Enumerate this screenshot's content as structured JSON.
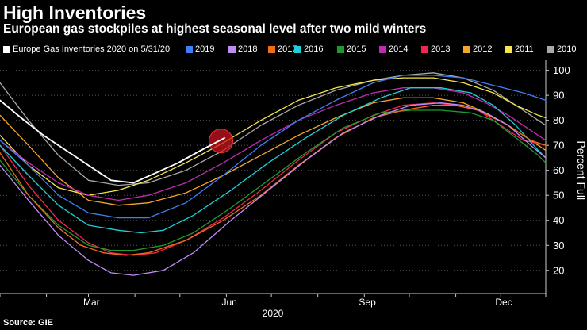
{
  "header": {
    "title": "High Inventories",
    "subtitle": "European gas stockpiles at highest seasonal level after two mild winters"
  },
  "source": "Source: GIE",
  "chart_data": {
    "type": "line",
    "title": "High Inventories",
    "subtitle": "European gas stockpiles at highest seasonal level after two mild winters",
    "xlabel": "2020",
    "ylabel": "Percent Full",
    "ylim": [
      12,
      104
    ],
    "yticks": [
      20,
      30,
      40,
      50,
      60,
      70,
      80,
      90,
      100
    ],
    "xlim": [
      1,
      365
    ],
    "xticks": [
      {
        "label": "Mar",
        "day": 62
      },
      {
        "label": "Jun",
        "day": 154
      },
      {
        "label": "Sep",
        "day": 246
      },
      {
        "label": "Dec",
        "day": 337
      }
    ],
    "grid": "horizontal dotted",
    "legend": "top",
    "annotation": {
      "type": "circle-highlight",
      "series": "Europe Gas Inventories 2020 on 5/31/20",
      "x": 151,
      "y": 73
    },
    "series": [
      {
        "name": "Europe Gas Inventories 2020 on 5/31/20",
        "color": "#ffffff",
        "x": [
          1,
          15,
          30,
          45,
          60,
          75,
          90,
          105,
          120,
          135,
          151
        ],
        "y": [
          88,
          81,
          74,
          68,
          62,
          56,
          55,
          59,
          63,
          68,
          73
        ]
      },
      {
        "name": "2019",
        "color": "#3d7ff5",
        "x": [
          1,
          20,
          40,
          60,
          80,
          100,
          125,
          150,
          175,
          200,
          225,
          250,
          270,
          290,
          310,
          330,
          350,
          365
        ],
        "y": [
          72,
          62,
          50,
          43,
          41,
          41,
          47,
          58,
          70,
          80,
          88,
          95,
          98,
          98,
          97,
          94,
          91,
          88
        ]
      },
      {
        "name": "2018",
        "color": "#c18bf6",
        "x": [
          1,
          20,
          40,
          60,
          75,
          90,
          110,
          130,
          155,
          180,
          205,
          230,
          255,
          275,
          295,
          310,
          325,
          340,
          355,
          365
        ],
        "y": [
          62,
          48,
          34,
          24,
          19,
          18,
          20,
          27,
          40,
          52,
          64,
          75,
          82,
          86,
          87,
          86,
          83,
          78,
          70,
          65
        ]
      },
      {
        "name": "2017",
        "color": "#f26a1b",
        "x": [
          1,
          20,
          40,
          55,
          70,
          85,
          100,
          125,
          150,
          175,
          200,
          225,
          250,
          270,
          290,
          305,
          320,
          340,
          355,
          365
        ],
        "y": [
          67,
          50,
          37,
          30,
          27,
          26,
          27,
          32,
          40,
          50,
          62,
          73,
          81,
          84,
          86,
          86,
          84,
          78,
          72,
          70
        ]
      },
      {
        "name": "2016",
        "color": "#1fd0d8",
        "x": [
          1,
          20,
          40,
          60,
          80,
          95,
          110,
          130,
          155,
          180,
          205,
          230,
          255,
          275,
          295,
          315,
          330,
          345,
          360,
          365
        ],
        "y": [
          70,
          58,
          46,
          38,
          36,
          35,
          36,
          42,
          52,
          63,
          73,
          82,
          89,
          93,
          93,
          91,
          86,
          78,
          68,
          65
        ]
      },
      {
        "name": "2015",
        "color": "#1e9a2f",
        "x": [
          1,
          20,
          40,
          60,
          75,
          90,
          110,
          130,
          155,
          180,
          205,
          230,
          255,
          275,
          295,
          315,
          330,
          345,
          360,
          365
        ],
        "y": [
          64,
          50,
          38,
          30,
          28,
          28,
          30,
          35,
          45,
          56,
          67,
          77,
          83,
          84,
          84,
          83,
          80,
          73,
          66,
          63
        ]
      },
      {
        "name": "2014",
        "color": "#c02bb1",
        "x": [
          1,
          20,
          40,
          60,
          80,
          100,
          125,
          150,
          175,
          200,
          225,
          250,
          270,
          290,
          310,
          325,
          340,
          355,
          365
        ],
        "y": [
          72,
          63,
          55,
          50,
          48,
          50,
          55,
          63,
          72,
          80,
          86,
          91,
          93,
          93,
          91,
          87,
          82,
          76,
          72
        ]
      },
      {
        "name": "2013",
        "color": "#f0284f",
        "x": [
          1,
          20,
          40,
          60,
          75,
          90,
          105,
          125,
          150,
          175,
          200,
          225,
          250,
          270,
          290,
          305,
          320,
          335,
          350,
          365
        ],
        "y": [
          70,
          54,
          40,
          31,
          27,
          26,
          27,
          32,
          41,
          52,
          64,
          75,
          82,
          86,
          87,
          86,
          84,
          78,
          72,
          70
        ]
      },
      {
        "name": "2012",
        "color": "#f6a52b",
        "x": [
          1,
          20,
          40,
          60,
          80,
          100,
          125,
          150,
          175,
          200,
          225,
          250,
          270,
          290,
          310,
          325,
          340,
          355,
          365
        ],
        "y": [
          82,
          70,
          57,
          48,
          46,
          47,
          51,
          58,
          66,
          74,
          81,
          87,
          89,
          89,
          87,
          83,
          78,
          72,
          68
        ]
      },
      {
        "name": "2011",
        "color": "#f5e64a",
        "x": [
          1,
          20,
          40,
          60,
          80,
          100,
          125,
          150,
          175,
          200,
          225,
          250,
          270,
          290,
          310,
          330,
          345,
          360,
          365
        ],
        "y": [
          74,
          62,
          53,
          50,
          52,
          56,
          63,
          71,
          80,
          88,
          93,
          96,
          97,
          97,
          95,
          91,
          86,
          82,
          81
        ]
      },
      {
        "name": "2010",
        "color": "#a9a9a9",
        "x": [
          1,
          20,
          40,
          60,
          80,
          100,
          125,
          150,
          175,
          200,
          225,
          250,
          270,
          290,
          310,
          330,
          345,
          360,
          365
        ],
        "y": [
          95,
          80,
          66,
          56,
          54,
          55,
          60,
          68,
          78,
          86,
          92,
          96,
          98,
          99,
          97,
          92,
          86,
          80,
          78
        ]
      }
    ]
  }
}
